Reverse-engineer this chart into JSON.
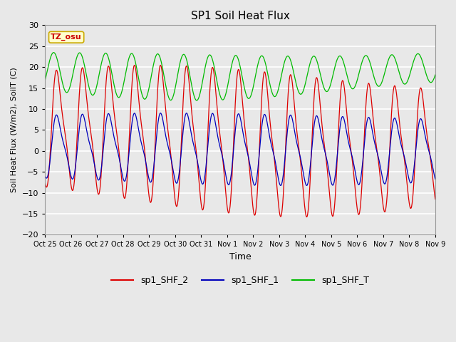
{
  "title": "SP1 Soil Heat Flux",
  "xlabel": "Time",
  "ylabel": "Soil Heat Flux (W/m2), SoilT (C)",
  "ylim": [
    -20,
    30
  ],
  "yticks": [
    -20,
    -15,
    -10,
    -5,
    0,
    5,
    10,
    15,
    20,
    25,
    30
  ],
  "xtick_labels": [
    "Oct 25",
    "Oct 26",
    "Oct 27",
    "Oct 28",
    "Oct 29",
    "Oct 30",
    "Oct 31",
    "Nov 1",
    "Nov 2",
    "Nov 3",
    "Nov 4",
    "Nov 5",
    "Nov 6",
    "Nov 7",
    "Nov 8",
    "Nov 9"
  ],
  "n_days": 15,
  "background_color": "#e8e8e8",
  "plot_bg_color": "#e8e8e8",
  "grid_color": "#ffffff",
  "line_colors": {
    "shf2": "#dd0000",
    "shf1": "#0000bb",
    "shft": "#00bb00"
  },
  "legend_labels": [
    "sp1_SHF_2",
    "sp1_SHF_1",
    "sp1_SHF_T"
  ],
  "tz_label": "TZ_osu",
  "tz_box_color": "#ffffcc",
  "tz_text_color": "#cc0000",
  "tz_edge_color": "#ccaa00"
}
